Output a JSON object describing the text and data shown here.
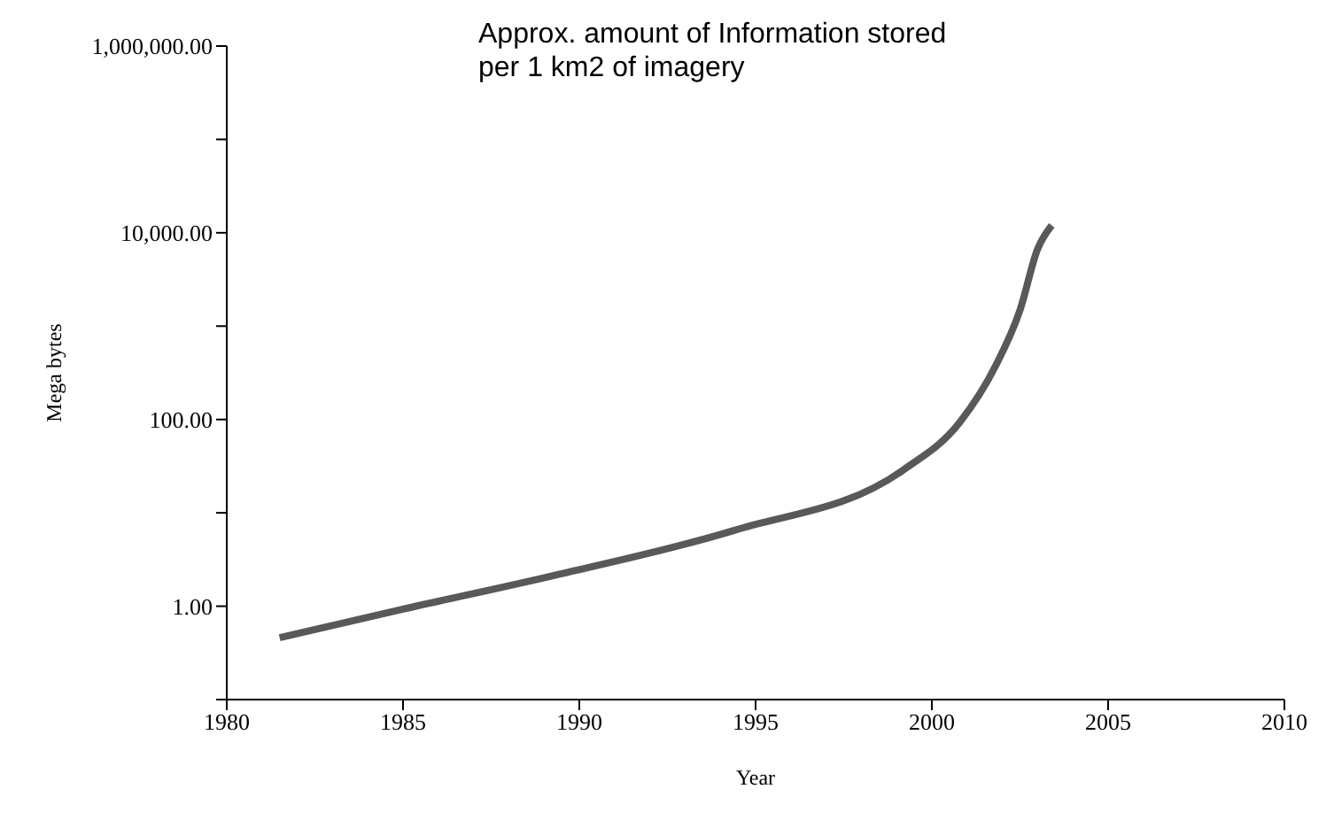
{
  "chart_data": {
    "type": "line",
    "title": "Approx. amount of Information stored per 1 km2 of imagery",
    "xlabel": "Year",
    "ylabel": "Mega bytes",
    "log": "y",
    "marker": "none",
    "line_style": "solid",
    "xlim": [
      1980,
      2010
    ],
    "xticks": [
      1980,
      1985,
      1990,
      1995,
      2000,
      2005,
      2010
    ],
    "ylim": [
      0.1,
      1000000
    ],
    "yticks": [
      {
        "value": 0.1,
        "label": null
      },
      {
        "value": 1,
        "label": "1.00"
      },
      {
        "value": 10,
        "label": null
      },
      {
        "value": 100,
        "label": "100.00"
      },
      {
        "value": 1000,
        "label": null
      },
      {
        "value": 10000,
        "label": "10,000.00"
      },
      {
        "value": 100000,
        "label": null
      },
      {
        "value": 1000000,
        "label": "1,000,000.00"
      }
    ],
    "x": [
      1981.5,
      1985,
      1989.2,
      1994.4,
      1999.2,
      2000.8,
      2001.8,
      2002.5,
      2003,
      2003.4
    ],
    "series": [
      {
        "color": "#595959",
        "values": [
          0.46,
          0.93,
          2.1,
          6.5,
          29,
          94,
          370,
          1480,
          6700,
          12000
        ]
      }
    ]
  }
}
